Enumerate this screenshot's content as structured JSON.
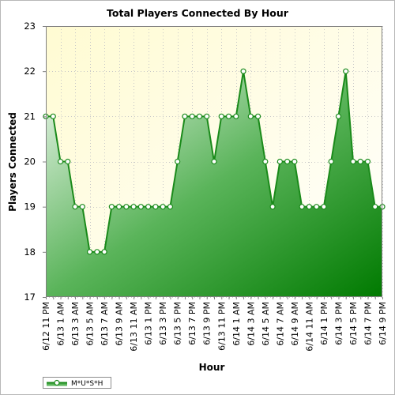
{
  "chart_data": {
    "type": "area",
    "title": "Total Players Connected By Hour",
    "xlabel": "Hour",
    "ylabel": "Players Connected",
    "ylim": [
      17,
      23
    ],
    "yticks": [
      17,
      18,
      19,
      20,
      21,
      22,
      23
    ],
    "grid": true,
    "legend_position": "bottom-left",
    "x": [
      "6/12 11 PM",
      "6/13 12 AM",
      "6/13 1 AM",
      "6/13 2 AM",
      "6/13 3 AM",
      "6/13 4 AM",
      "6/13 5 AM",
      "6/13 6 AM",
      "6/13 7 AM",
      "6/13 8 AM",
      "6/13 9 AM",
      "6/13 10 AM",
      "6/13 11 AM",
      "6/13 12 PM",
      "6/13 1 PM",
      "6/13 2 PM",
      "6/13 3 PM",
      "6/13 4 PM",
      "6/13 5 PM",
      "6/13 6 PM",
      "6/13 7 PM",
      "6/13 8 PM",
      "6/13 9 PM",
      "6/13 10 PM",
      "6/13 11 PM",
      "6/14 12 AM",
      "6/14 1 AM",
      "6/14 2 AM",
      "6/14 3 AM",
      "6/14 4 AM",
      "6/14 5 AM",
      "6/14 6 AM",
      "6/14 7 AM",
      "6/14 8 AM",
      "6/14 9 AM",
      "6/14 10 AM",
      "6/14 11 AM",
      "6/14 12 PM",
      "6/14 1 PM",
      "6/14 2 PM",
      "6/14 3 PM",
      "6/14 4 PM",
      "6/14 5 PM",
      "6/14 6 PM",
      "6/14 7 PM",
      "6/14 8 PM",
      "6/14 9 PM"
    ],
    "x_tick_labels_shown": [
      "6/12 11 PM",
      "6/13 1 AM",
      "6/13 3 AM",
      "6/13 5 AM",
      "6/13 7 AM",
      "6/13 9 AM",
      "6/13 11 AM",
      "6/13 1 PM",
      "6/13 3 PM",
      "6/13 5 PM",
      "6/13 7 PM",
      "6/13 9 PM",
      "6/13 11 PM",
      "6/14 1 AM",
      "6/14 3 AM",
      "6/14 5 AM",
      "6/14 7 AM",
      "6/14 9 AM",
      "6/14 11 AM",
      "6/14 1 PM",
      "6/14 3 PM",
      "6/14 5 PM",
      "6/14 7 PM",
      "6/14 9 PM"
    ],
    "series": [
      {
        "name": "M*U*S*H",
        "color": "#1a8a1a",
        "values": [
          21,
          21,
          20,
          20,
          19,
          19,
          18,
          18,
          18,
          19,
          19,
          19,
          19,
          19,
          19,
          19,
          19,
          19,
          20,
          21,
          21,
          21,
          21,
          20,
          21,
          21,
          21,
          22,
          21,
          21,
          20,
          19,
          20,
          20,
          20,
          19,
          19,
          19,
          19,
          20,
          21,
          22,
          20,
          20,
          20,
          19,
          19
        ]
      }
    ]
  }
}
